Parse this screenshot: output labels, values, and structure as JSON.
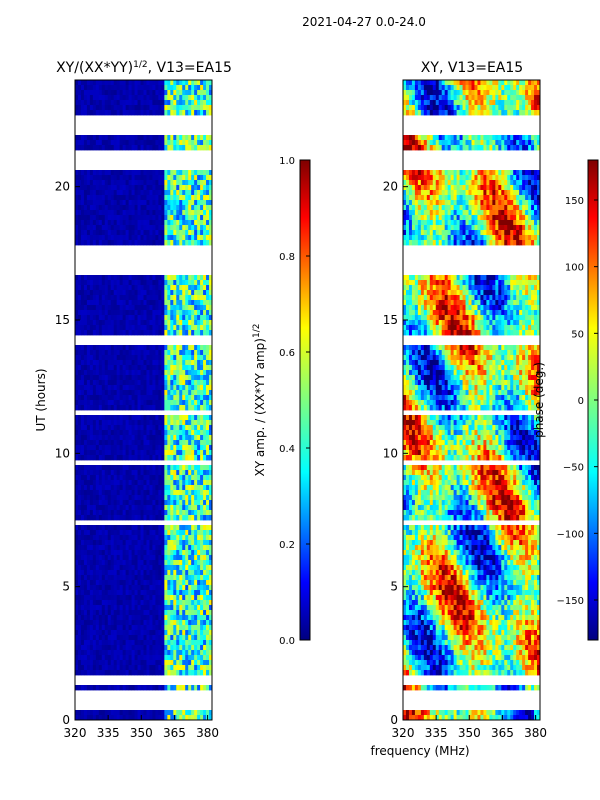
{
  "figure": {
    "suptitle": "2021-04-27 0.0-24.0",
    "xlabel": "frequency (MHz)",
    "colors": {
      "background": "#ffffff",
      "gap": "#ffffff",
      "axes": "#000000",
      "low": "#00008f"
    }
  },
  "chart_data": [
    {
      "type": "heatmap",
      "name": "amplitude",
      "title_main": "XY/(XX*YY)",
      "title_sup": "1/2",
      "title_suffix": ", V13=EA15",
      "xlabel": "",
      "ylabel": "UT (hours)",
      "xlim": [
        320,
        382
      ],
      "ylim": [
        0,
        24
      ],
      "xticks": [
        320,
        335,
        350,
        365,
        380
      ],
      "yticks": [
        0,
        5,
        10,
        15,
        20
      ],
      "band_high_start_mhz": 360,
      "colormap": "jet",
      "colorbar": {
        "label_main": "XY amp. / (XX*YY amp)",
        "label_sup": "1/2",
        "range": [
          0.0,
          1.0
        ],
        "ticks": [
          "0.0",
          "0.2",
          "0.4",
          "0.6",
          "0.8",
          "1.0"
        ]
      }
    },
    {
      "type": "heatmap",
      "name": "phase",
      "title_main": "XY, V13=EA15",
      "xlabel": "",
      "ylabel": "",
      "xlim": [
        320,
        382
      ],
      "ylim": [
        0,
        24
      ],
      "xticks": [
        320,
        335,
        350,
        365,
        380
      ],
      "yticks": [
        0,
        5,
        10,
        15,
        20
      ],
      "colormap": "jet",
      "colorbar": {
        "label": "phase (deg.)",
        "range": [
          -180,
          180
        ],
        "ticks": [
          "−150",
          "−100",
          "−50",
          "0",
          "50",
          "100",
          "150"
        ]
      }
    }
  ],
  "data_gaps_hours": [
    [
      0.45,
      1.05
    ],
    [
      1.35,
      1.6
    ],
    [
      20.6,
      21.45
    ],
    [
      21.95,
      22.65
    ],
    [
      16.6,
      17.6
    ],
    [
      17.7,
      17.85
    ],
    [
      14.1,
      14.5
    ],
    [
      13.6,
      13.7
    ],
    [
      7.4,
      7.55
    ],
    [
      11.5,
      11.6
    ],
    [
      9.6,
      9.7
    ]
  ]
}
